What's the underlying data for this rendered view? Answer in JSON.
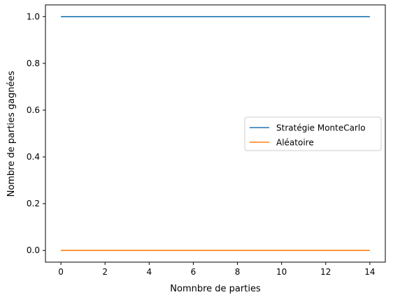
{
  "chart_data": {
    "type": "line",
    "title": "",
    "xlabel": "Nomnbre de parties",
    "ylabel": "Nombre de parties gagnées",
    "x": [
      0,
      1,
      2,
      3,
      4,
      5,
      6,
      7,
      8,
      9,
      10,
      11,
      12,
      13,
      14
    ],
    "series": [
      {
        "name": "Stratégie MonteCarlo",
        "color": "#1f77b4",
        "values": [
          1,
          1,
          1,
          1,
          1,
          1,
          1,
          1,
          1,
          1,
          1,
          1,
          1,
          1,
          1
        ]
      },
      {
        "name": "Aléatoire",
        "color": "#ff7f0e",
        "values": [
          0,
          0,
          0,
          0,
          0,
          0,
          0,
          0,
          0,
          0,
          0,
          0,
          0,
          0,
          0
        ]
      }
    ],
    "xlim": [
      -0.7,
      14.7
    ],
    "ylim": [
      -0.05,
      1.05
    ],
    "xticks": [
      0,
      2,
      4,
      6,
      8,
      10,
      12,
      14
    ],
    "xtick_labels": [
      "0",
      "2",
      "4",
      "6",
      "8",
      "10",
      "12",
      "14"
    ],
    "yticks": [
      0.0,
      0.2,
      0.4,
      0.6,
      0.8,
      1.0
    ],
    "ytick_labels": [
      "0.0",
      "0.2",
      "0.4",
      "0.6",
      "0.8",
      "1.0"
    ],
    "grid": false,
    "legend_position": "center-right"
  }
}
